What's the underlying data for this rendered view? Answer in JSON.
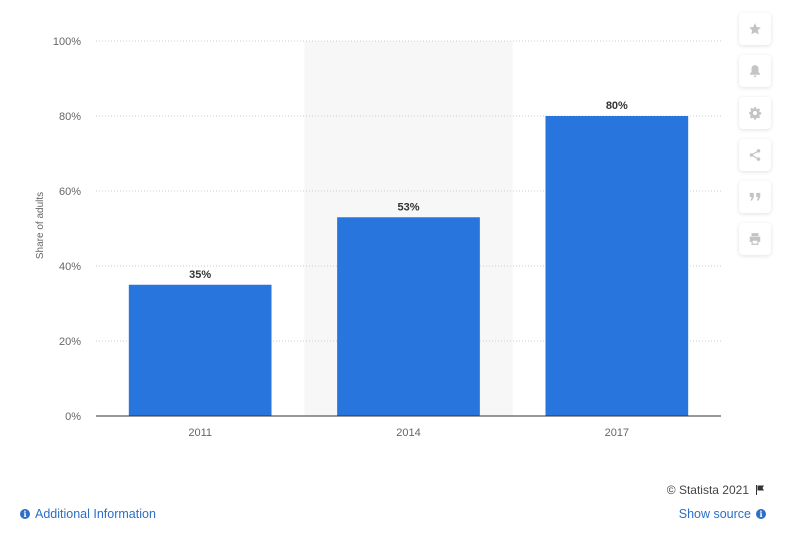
{
  "chart_data": {
    "type": "bar",
    "categories": [
      "2011",
      "2014",
      "2017"
    ],
    "values": [
      35,
      53,
      80
    ],
    "data_labels": [
      "35%",
      "53%",
      "80%"
    ],
    "ylabel": "Share of adults",
    "xlabel": "",
    "ylim": [
      0,
      100
    ],
    "yticks": [
      0,
      20,
      40,
      60,
      80,
      100
    ],
    "ytick_labels": [
      "0%",
      "20%",
      "40%",
      "60%",
      "80%",
      "100%"
    ],
    "grid": true,
    "highlighted_category": "2014",
    "colors": {
      "bar": "#2876dd",
      "highlight_band": "#f7f7f7",
      "grid": "#cccccc",
      "axis": "#333333"
    }
  },
  "sidebar": {
    "items": [
      {
        "icon": "star-icon"
      },
      {
        "icon": "bell-icon"
      },
      {
        "icon": "gear-icon"
      },
      {
        "icon": "share-icon"
      },
      {
        "icon": "quote-icon"
      },
      {
        "icon": "print-icon"
      }
    ]
  },
  "footer": {
    "credit": "© Statista 2021",
    "additional_info": "Additional Information",
    "show_source": "Show source"
  }
}
